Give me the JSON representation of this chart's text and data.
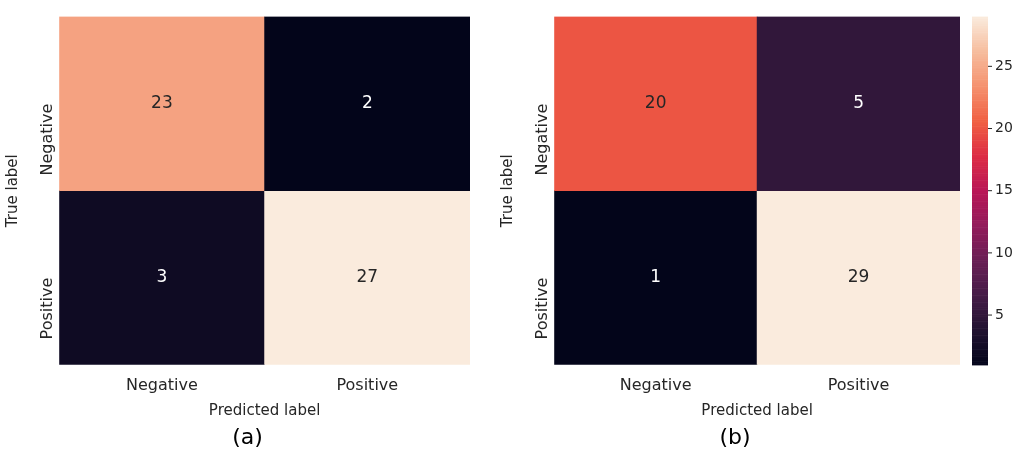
{
  "chart_data": [
    {
      "type": "heatmap",
      "categories": [
        "Negative",
        "Positive"
      ],
      "y_categories": [
        "Negative",
        "Positive"
      ],
      "cells": [
        [
          23,
          2
        ],
        [
          3,
          27
        ]
      ],
      "data_labels": true,
      "xlabel": "Predicted label",
      "ylabel": "True label",
      "annotations": [
        "(a)"
      ]
    },
    {
      "type": "heatmap",
      "categories": [
        "Negative",
        "Positive"
      ],
      "y_categories": [
        "Negative",
        "Positive"
      ],
      "cells": [
        [
          20,
          5
        ],
        [
          1,
          29
        ]
      ],
      "data_labels": true,
      "xlabel": "Predicted label",
      "ylabel": "True label",
      "clim": [
        1,
        29
      ],
      "cticks": [
        5,
        10,
        15,
        20,
        25
      ],
      "annotations": [
        "(b)"
      ]
    }
  ]
}
